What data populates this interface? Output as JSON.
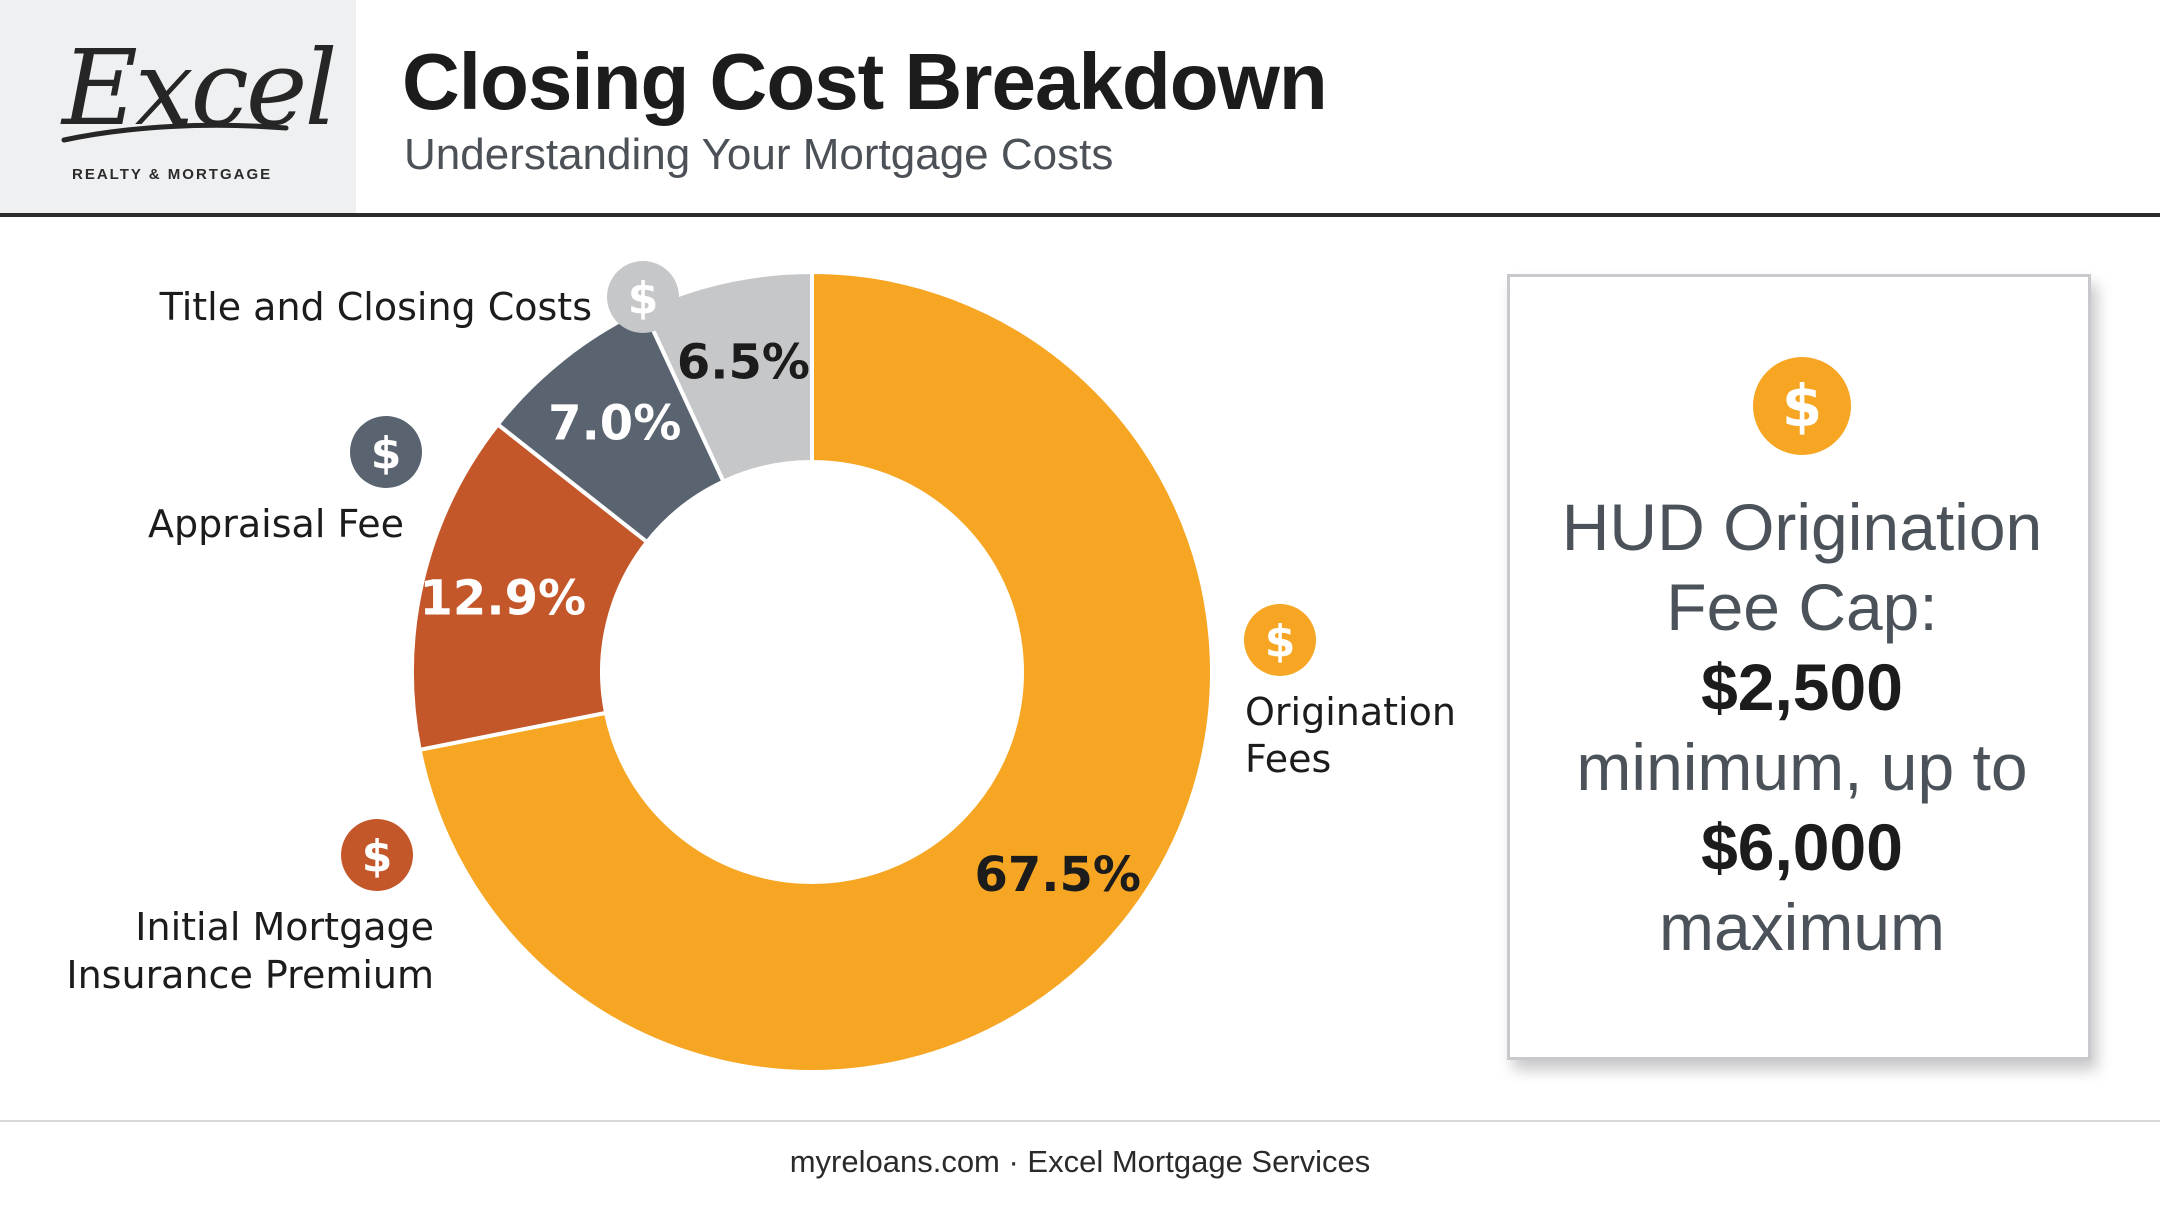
{
  "brand": {
    "logo_script": "Excel",
    "logo_tagline": "REALTY & MORTGAGE"
  },
  "header": {
    "title": "Closing Cost Breakdown",
    "subtitle": "Understanding Your Mortgage Costs"
  },
  "chart_data": {
    "type": "pie",
    "style": "donut",
    "categories": [
      "Origination Fees",
      "Initial Mortgage Insurance Premium",
      "Appraisal Fee",
      "Title and Closing Costs"
    ],
    "values": [
      67.5,
      12.9,
      7.0,
      6.5
    ],
    "value_labels": [
      "67.5%",
      "12.9%",
      "7.0%",
      "6.5%"
    ],
    "colors": [
      "#f6a623",
      "#c4572a",
      "#5a6470",
      "#c6c7c9"
    ],
    "label_colors": [
      "#1c1c1c",
      "#ffffff",
      "#ffffff",
      "#1c1c1c"
    ],
    "icon": "dollar-coin-icon",
    "icon_glyph": "$",
    "start_angle_deg": 0,
    "direction": "clockwise"
  },
  "callout": {
    "icon": "dollar-coin-icon",
    "icon_glyph": "$",
    "text_1": "HUD Origination Fee Cap:",
    "value_min": "$2,500",
    "text_2": "minimum, up to",
    "value_max": "$6,000",
    "text_3": "maximum",
    "accent_color": "#f6a623"
  },
  "footer": {
    "text": "myreloans.com · Excel Mortgage Services"
  }
}
